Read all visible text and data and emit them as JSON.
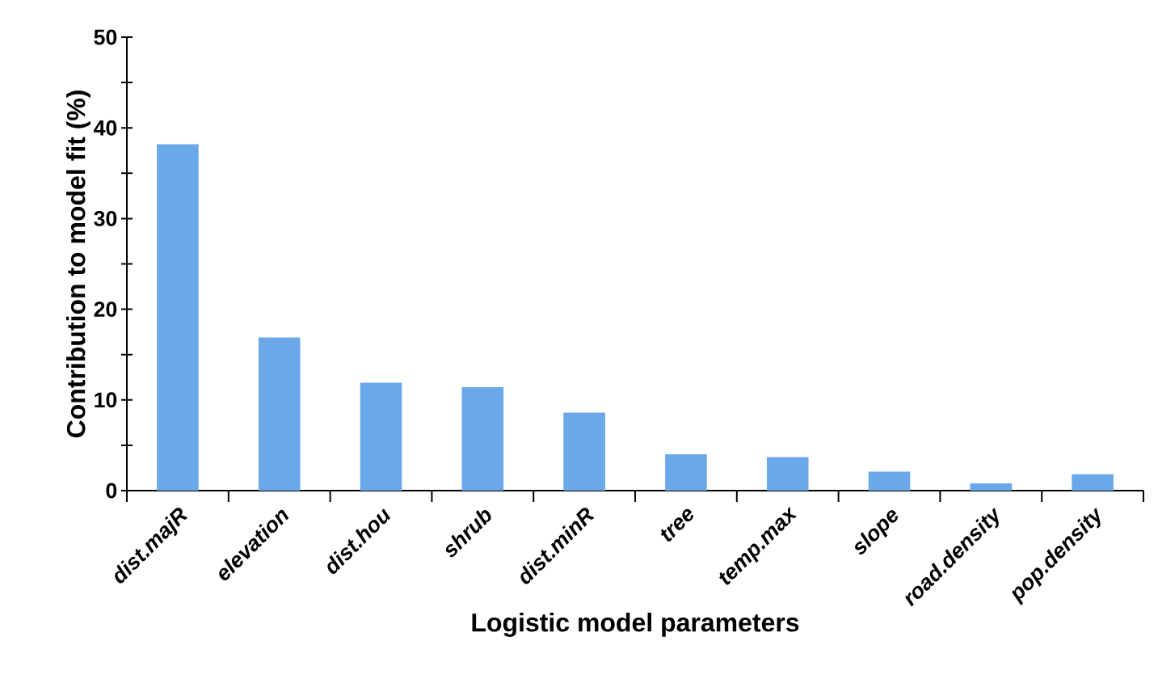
{
  "chart_data": {
    "type": "bar",
    "xlabel": "Logistic model parameters",
    "ylabel": "Contribution to model fit (%)",
    "categories": [
      "dist.majR",
      "elevation",
      "dist.hou",
      "shrub",
      "dist.minR",
      "tree",
      "temp.max",
      "slope",
      "road.density",
      "pop.density"
    ],
    "values": [
      38.2,
      16.9,
      11.9,
      11.4,
      8.6,
      4.0,
      3.7,
      2.1,
      0.8,
      1.8
    ],
    "color": "#6aa8ea",
    "ylim": [
      0,
      50
    ],
    "yticks": [
      0,
      {
        "value": 5,
        "label": null
      },
      10,
      {
        "value": 15,
        "label": null
      },
      20,
      {
        "value": 25,
        "label": null
      },
      30,
      {
        "value": 35,
        "label": null
      },
      40,
      {
        "value": 45,
        "label": null
      },
      50
    ]
  }
}
